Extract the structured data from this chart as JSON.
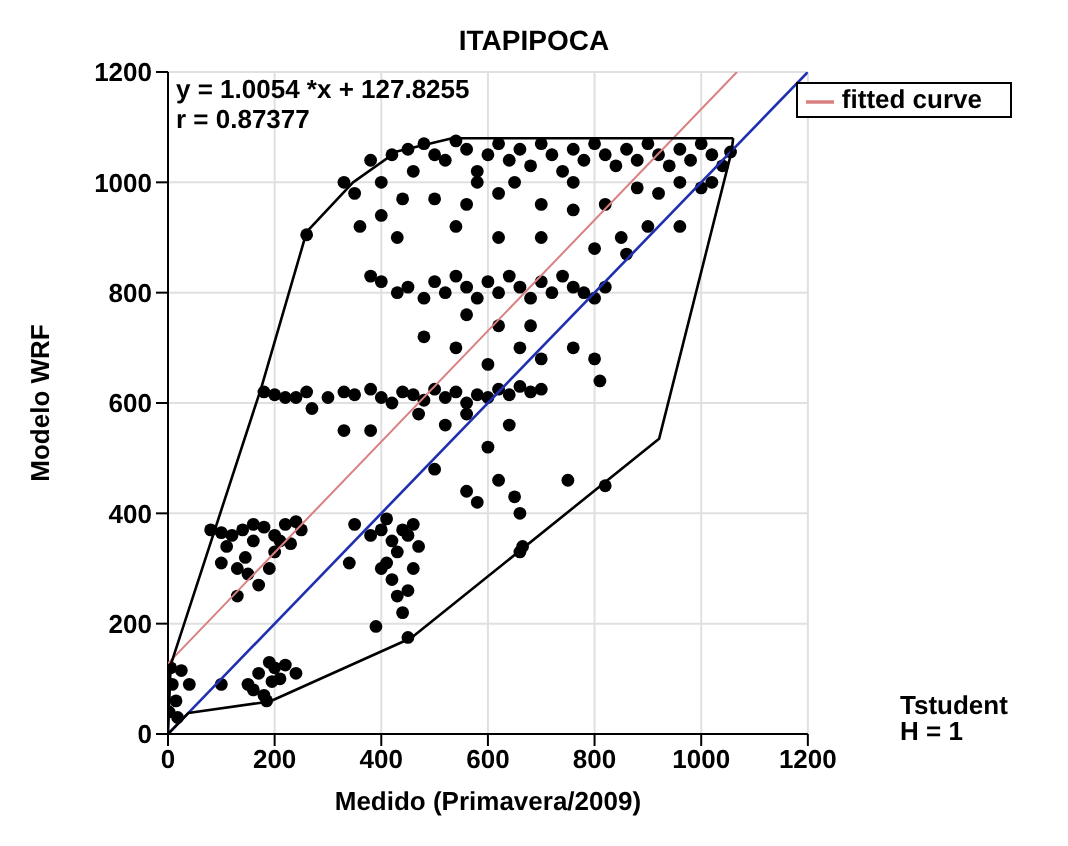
{
  "chart_data": {
    "type": "scatter",
    "title": "ITAPIPOCA",
    "xlabel": "Medido (Primavera/2009)",
    "ylabel": "Modelo WRF",
    "xlim": [
      0,
      1200
    ],
    "ylim": [
      0,
      1200
    ],
    "xticks": [
      0,
      200,
      400,
      600,
      800,
      1000,
      1200
    ],
    "yticks": [
      0,
      200,
      400,
      600,
      800,
      1000,
      1200
    ],
    "grid": true,
    "legend": "top right",
    "annotations": [
      "y = 1.0054 *x + 127.8255",
      "r = 0.87377",
      "Tstudent",
      "H = 1"
    ],
    "series": [
      {
        "color": "#000000",
        "marker": "circle",
        "x": [
          2,
          15,
          8,
          25,
          40,
          5,
          18,
          80,
          100,
          120,
          140,
          160,
          180,
          200,
          220,
          240,
          110,
          130,
          150,
          170,
          145,
          200,
          230,
          190,
          100,
          160,
          250,
          210,
          130,
          150,
          170,
          180,
          190,
          200,
          210,
          220,
          100,
          160,
          195,
          240,
          185,
          350,
          380,
          400,
          410,
          420,
          430,
          440,
          450,
          460,
          470,
          400,
          420,
          430,
          440,
          450,
          390,
          450,
          340,
          410,
          460,
          180,
          200,
          220,
          240,
          260,
          300,
          330,
          350,
          380,
          400,
          420,
          440,
          460,
          480,
          500,
          520,
          540,
          560,
          580,
          600,
          620,
          640,
          660,
          680,
          700,
          470,
          520,
          560,
          600,
          640,
          380,
          330,
          270,
          380,
          400,
          430,
          450,
          480,
          500,
          520,
          540,
          560,
          580,
          600,
          620,
          640,
          660,
          680,
          700,
          720,
          740,
          760,
          780,
          800,
          820,
          560,
          620,
          680,
          760,
          800,
          480,
          540,
          660,
          700,
          600,
          810,
          620,
          650,
          660,
          750,
          820,
          660,
          665,
          560,
          500,
          580,
          260,
          330,
          350,
          380,
          420,
          400,
          450,
          460,
          480,
          500,
          520,
          540,
          560,
          580,
          600,
          620,
          640,
          660,
          680,
          700,
          720,
          740,
          760,
          780,
          800,
          820,
          840,
          860,
          880,
          900,
          920,
          940,
          960,
          980,
          1000,
          1020,
          1040,
          1055,
          500,
          560,
          620,
          700,
          760,
          820,
          880,
          920,
          960,
          1000,
          900,
          850,
          800,
          860,
          960,
          1020,
          540,
          620,
          700,
          440,
          400,
          360,
          430,
          760,
          580,
          650
        ],
        "values": [
          40,
          60,
          90,
          115,
          90,
          120,
          30,
          370,
          365,
          360,
          370,
          350,
          375,
          360,
          380,
          385,
          340,
          300,
          290,
          270,
          320,
          330,
          345,
          300,
          310,
          380,
          370,
          350,
          250,
          90,
          110,
          70,
          130,
          120,
          100,
          125,
          90,
          80,
          95,
          110,
          60,
          380,
          360,
          370,
          390,
          350,
          330,
          370,
          360,
          380,
          340,
          300,
          280,
          250,
          220,
          260,
          195,
          175,
          310,
          310,
          300,
          620,
          615,
          610,
          610,
          620,
          610,
          620,
          615,
          625,
          610,
          600,
          620,
          615,
          605,
          625,
          610,
          620,
          600,
          615,
          610,
          625,
          615,
          630,
          620,
          625,
          580,
          560,
          580,
          520,
          560,
          550,
          550,
          590,
          830,
          820,
          800,
          810,
          790,
          820,
          800,
          830,
          810,
          790,
          820,
          800,
          830,
          810,
          790,
          820,
          800,
          830,
          810,
          800,
          790,
          810,
          760,
          740,
          740,
          700,
          680,
          720,
          700,
          700,
          680,
          670,
          640,
          460,
          430,
          400,
          460,
          450,
          330,
          340,
          440,
          480,
          420,
          905,
          1000,
          980,
          1040,
          1050,
          1000,
          1060,
          1020,
          1070,
          1050,
          1040,
          1075,
          1060,
          1020,
          1050,
          1070,
          1040,
          1060,
          1030,
          1070,
          1050,
          1020,
          1060,
          1040,
          1070,
          1050,
          1030,
          1060,
          1040,
          1070,
          1050,
          1030,
          1060,
          1040,
          1070,
          1050,
          1030,
          1055,
          970,
          960,
          980,
          960,
          950,
          960,
          990,
          980,
          1000,
          990,
          920,
          900,
          880,
          870,
          920,
          1000,
          920,
          900,
          900,
          970,
          940,
          920,
          900,
          1000,
          1000,
          1000
        ]
      },
      {
        "type": "line",
        "name": "fitted curve",
        "color": "#d98080",
        "x": [
          0,
          1067
        ],
        "values": [
          128,
          1200
        ]
      },
      {
        "type": "line",
        "color": "#1f2fb0",
        "x": [
          0,
          1200
        ],
        "values": [
          0,
          1200
        ]
      },
      {
        "type": "line",
        "color": "#000000",
        "x": [
          0,
          38,
          191,
          456,
          921,
          1057,
          1060
        ],
        "values": [
          0,
          38,
          59,
          174,
          535,
          1056,
          1080
        ]
      },
      {
        "type": "line",
        "color": "#000000",
        "x": [
          0,
          5,
          175,
          260,
          347,
          429,
          533,
          1060
        ],
        "values": [
          0,
          125,
          628,
          910,
          1000,
          1056,
          1080,
          1080
        ]
      }
    ]
  }
}
